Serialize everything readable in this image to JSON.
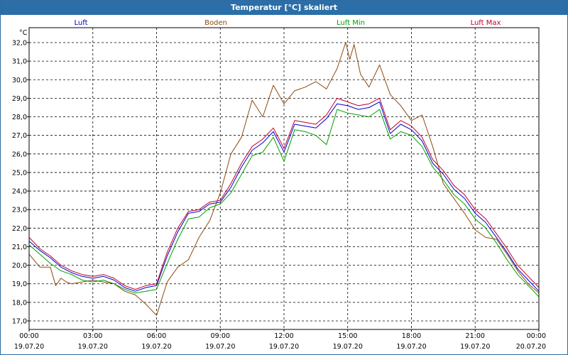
{
  "window": {
    "title": "Temperatur [°C] skaliert"
  },
  "chart_data": {
    "type": "line",
    "title": "Temperatur [°C] skaliert",
    "ylabel": "°C",
    "xlabel": "",
    "ylim": [
      17.0,
      32.0
    ],
    "xlim": [
      0,
      24
    ],
    "grid": true,
    "legend_position": "top",
    "y_ticks": [
      "17,0",
      "18,0",
      "19,0",
      "20,0",
      "21,0",
      "22,0",
      "23,0",
      "24,0",
      "25,0",
      "26,0",
      "27,0",
      "28,0",
      "29,0",
      "30,0",
      "31,0",
      "32,0"
    ],
    "x_ticks": [
      {
        "time": "00:00",
        "date": "19.07.20"
      },
      {
        "time": "03:00",
        "date": "19.07.20"
      },
      {
        "time": "06:00",
        "date": "19.07.20"
      },
      {
        "time": "09:00",
        "date": "19.07.20"
      },
      {
        "time": "12:00",
        "date": "19.07.20"
      },
      {
        "time": "15:00",
        "date": "19.07.20"
      },
      {
        "time": "18:00",
        "date": "19.07.20"
      },
      {
        "time": "21:00",
        "date": "19.07.20"
      },
      {
        "time": "00:00",
        "date": "20.07.20"
      }
    ],
    "series": [
      {
        "name": "Luft",
        "color": "#0000cc",
        "x": [
          0,
          0.5,
          1,
          1.5,
          2,
          2.5,
          3,
          3.5,
          4,
          4.5,
          5,
          5.5,
          6,
          6.5,
          7,
          7.5,
          8,
          8.5,
          9,
          9.5,
          10,
          10.5,
          11,
          11.5,
          12,
          12.5,
          13,
          13.5,
          14,
          14.5,
          15,
          15.5,
          16,
          16.5,
          17,
          17.5,
          18,
          18.5,
          19,
          19.5,
          20,
          20.5,
          21,
          21.5,
          22,
          22.5,
          23,
          23.5,
          24
        ],
        "values": [
          21.3,
          20.8,
          20.4,
          19.9,
          19.6,
          19.4,
          19.3,
          19.4,
          19.2,
          18.8,
          18.6,
          18.8,
          18.9,
          20.5,
          21.8,
          22.8,
          22.9,
          23.3,
          23.4,
          24.2,
          25.3,
          26.2,
          26.6,
          27.2,
          26.1,
          27.6,
          27.5,
          27.4,
          27.9,
          28.7,
          28.6,
          28.4,
          28.5,
          28.8,
          27.1,
          27.6,
          27.3,
          26.7,
          25.5,
          24.9,
          24.1,
          23.6,
          22.8,
          22.3,
          21.5,
          20.7,
          19.8,
          19.2,
          18.6
        ]
      },
      {
        "name": "Boden",
        "color": "#8b4a0e",
        "x": [
          0,
          0.5,
          1,
          1.25,
          1.5,
          1.75,
          2,
          2.5,
          3,
          3.5,
          4,
          4.5,
          5,
          5.5,
          6,
          6.5,
          7,
          7.5,
          8,
          8.5,
          9,
          9.5,
          10,
          10.5,
          11,
          11.5,
          12,
          12.5,
          13,
          13.5,
          14,
          14.5,
          14.9,
          15.1,
          15.3,
          15.6,
          16,
          16.5,
          17,
          17.5,
          18,
          18.5,
          19,
          19.5,
          20,
          20.5,
          21,
          21.5,
          22,
          22.5,
          23,
          23.5,
          24
        ],
        "values": [
          20.6,
          19.9,
          19.9,
          18.9,
          19.3,
          19.1,
          19.0,
          19.1,
          19.2,
          19.1,
          19.0,
          18.6,
          18.4,
          17.9,
          17.3,
          19.1,
          19.9,
          20.3,
          21.5,
          22.4,
          23.9,
          26.0,
          26.9,
          28.9,
          28.0,
          29.7,
          28.7,
          29.4,
          29.6,
          29.9,
          29.5,
          30.6,
          32.0,
          31.1,
          31.9,
          30.3,
          29.6,
          30.8,
          29.2,
          28.6,
          27.8,
          28.1,
          26.4,
          24.4,
          23.6,
          22.8,
          21.9,
          21.5,
          21.4,
          20.6,
          19.7,
          19.0,
          18.5
        ]
      },
      {
        "name": "Luft Min",
        "color": "#00a000",
        "x": [
          0,
          0.5,
          1,
          1.5,
          2,
          2.5,
          3,
          3.5,
          4,
          4.5,
          5,
          5.5,
          6,
          6.5,
          7,
          7.5,
          8,
          8.5,
          9,
          9.5,
          10,
          10.5,
          11,
          11.5,
          12,
          12.5,
          13,
          13.5,
          14,
          14.5,
          15,
          15.5,
          16,
          16.5,
          17,
          17.5,
          18,
          18.5,
          19,
          19.5,
          20,
          20.5,
          21,
          21.5,
          22,
          22.5,
          23,
          23.5,
          24
        ],
        "values": [
          21.1,
          20.6,
          20.1,
          19.7,
          19.5,
          19.2,
          19.1,
          19.2,
          19.0,
          18.7,
          18.5,
          18.6,
          18.7,
          20.1,
          21.4,
          22.5,
          22.6,
          23.1,
          23.3,
          23.9,
          24.9,
          25.9,
          26.1,
          26.9,
          25.6,
          27.3,
          27.2,
          27.0,
          26.5,
          28.4,
          28.2,
          28.1,
          28.0,
          28.4,
          26.8,
          27.2,
          27.0,
          26.4,
          25.3,
          24.6,
          23.8,
          23.3,
          22.5,
          22.0,
          21.2,
          20.3,
          19.5,
          18.9,
          18.3
        ]
      },
      {
        "name": "Luft Max",
        "color": "#c00030",
        "x": [
          0,
          0.5,
          1,
          1.5,
          2,
          2.5,
          3,
          3.5,
          4,
          4.5,
          5,
          5.5,
          6,
          6.5,
          7,
          7.5,
          8,
          8.5,
          9,
          9.5,
          10,
          10.5,
          11,
          11.5,
          12,
          12.5,
          13,
          13.5,
          14,
          14.5,
          15,
          15.5,
          16,
          16.5,
          17,
          17.5,
          18,
          18.5,
          19,
          19.5,
          20,
          20.5,
          21,
          21.5,
          22,
          22.5,
          23,
          23.5,
          24
        ],
        "values": [
          21.5,
          20.9,
          20.5,
          20.0,
          19.7,
          19.5,
          19.4,
          19.5,
          19.3,
          18.9,
          18.7,
          18.9,
          19.0,
          20.7,
          22.0,
          22.9,
          23.0,
          23.4,
          23.5,
          24.4,
          25.5,
          26.4,
          26.8,
          27.4,
          26.3,
          27.8,
          27.7,
          27.6,
          28.1,
          29.0,
          28.8,
          28.6,
          28.7,
          29.0,
          27.3,
          27.8,
          27.5,
          26.9,
          25.7,
          25.1,
          24.3,
          23.8,
          23.0,
          22.5,
          21.7,
          20.9,
          20.0,
          19.4,
          18.8
        ]
      }
    ]
  }
}
